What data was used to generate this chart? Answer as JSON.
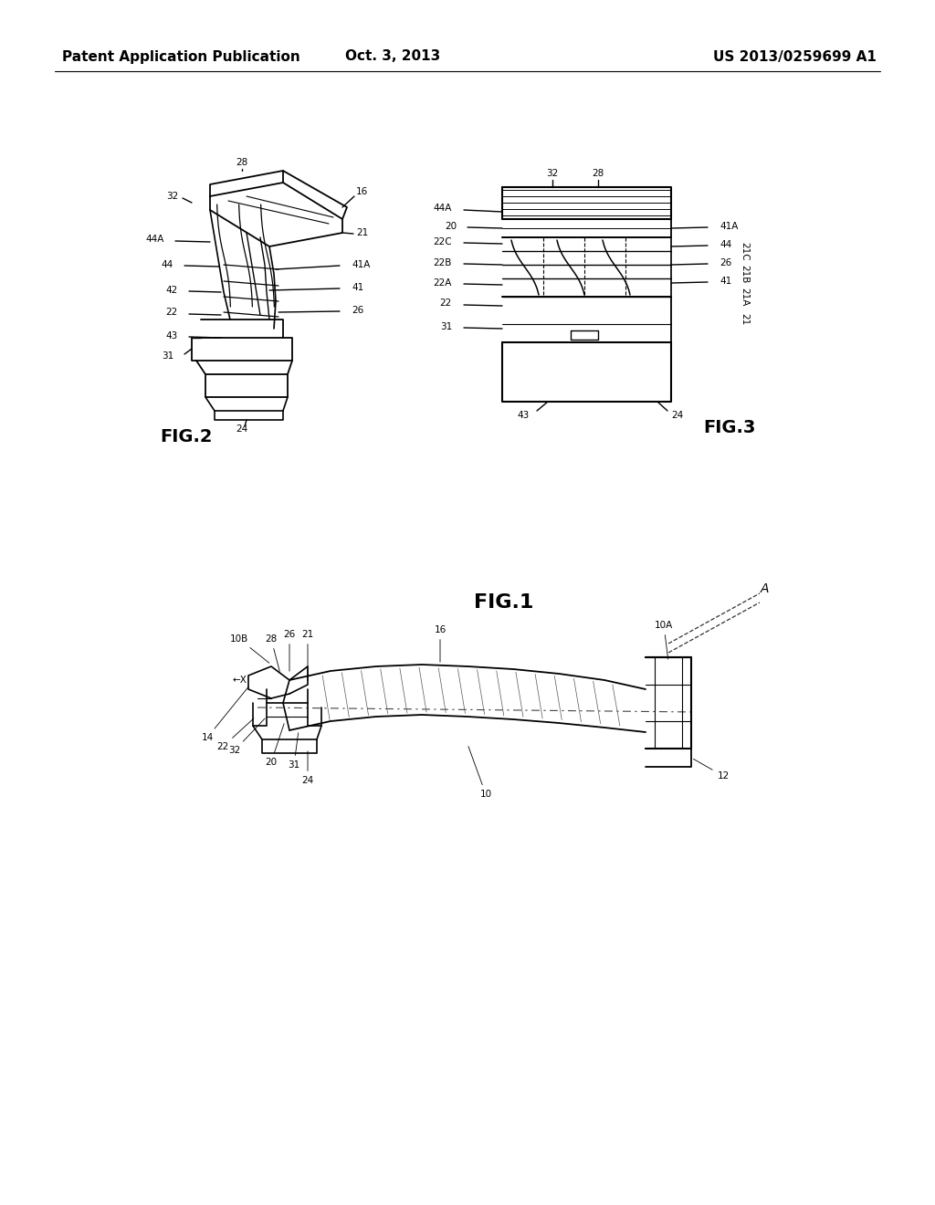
{
  "background_color": "#ffffff",
  "header_left": "Patent Application Publication",
  "header_center": "Oct. 3, 2013",
  "header_right": "US 2013/0259699 A1",
  "line_color": "#000000",
  "text_color": "#000000",
  "label_fontsize": 7.5,
  "fig1_fontsize": 16,
  "fig2_fontsize": 14,
  "fig3_fontsize": 14,
  "header_fontsize": 11
}
